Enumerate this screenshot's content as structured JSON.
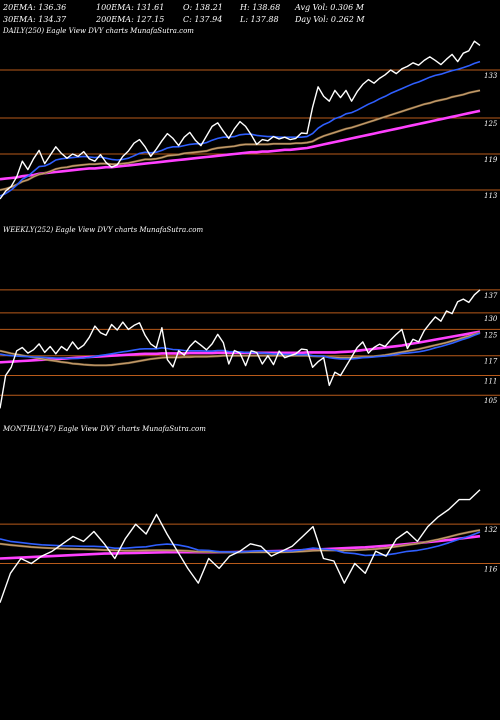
{
  "header": {
    "ema20": "20EMA: 136.36",
    "ema100": "100EMA: 131.61",
    "open": "O: 138.21",
    "high": "H: 138.68",
    "avgvol": "Avg Vol: 0.306  M",
    "ema30": "30EMA: 134.37",
    "ema200": "200EMA: 127.15",
    "close": "C: 137.94",
    "low": "L: 137.88",
    "dayvol": "Day Vol: 0.262  M"
  },
  "panels": {
    "daily": {
      "label": "DAILY(250) Eagle  View  DVY charts MunafaSutra.com"
    },
    "weekly": {
      "label": "WEEKLY(252) Eagle  View  DVY charts MunafaSutra.com"
    },
    "monthly": {
      "label": "MONTHLY(47) Eagle  View  DVY charts MunafaSutra.com"
    }
  },
  "colors": {
    "background": "#000000",
    "price": "#ffffff",
    "ema_fast": "#2f5fff",
    "ema_slow": "#c8a070",
    "ema_long": "#ff40ff",
    "gridline": "#b85a1a"
  },
  "chart_data": [
    {
      "type": "line",
      "title": "DAILY(250) Eagle  View  DVY charts MunafaSutra.com",
      "grid_levels": [
        133,
        125,
        119,
        113
      ],
      "ylim": [
        108,
        138
      ],
      "series": [
        {
          "values": [
            111.5,
            112.8,
            113.6,
            115.2,
            117.8,
            116.4,
            118.2,
            119.6,
            117.4,
            118.8,
            120.2,
            119.1,
            118.3,
            119.0,
            118.6,
            119.4,
            118.2,
            117.8,
            118.9,
            117.6,
            116.8,
            117.2,
            118.6,
            119.5,
            120.8,
            121.4,
            120.2,
            118.6,
            119.8,
            121.2,
            122.4,
            121.6,
            120.4,
            121.8,
            122.6,
            121.3,
            120.4,
            122.0,
            123.6,
            124.2,
            122.8,
            121.6,
            123.2,
            124.4,
            123.6,
            122.2,
            120.6,
            121.4,
            121.2,
            121.9,
            121.5,
            121.8,
            121.4,
            121.6,
            122.5,
            122.4,
            126.8,
            130.2,
            128.6,
            127.8,
            129.6,
            128.4,
            129.6,
            127.8,
            129.4,
            130.6,
            131.4,
            130.8,
            131.6,
            132.2,
            133.0,
            132.4,
            133.2,
            133.6,
            134.2,
            133.8,
            134.6,
            135.2,
            134.6,
            133.9,
            134.8,
            135.6,
            134.4,
            135.8,
            136.2,
            137.8,
            137.1
          ]
        },
        {
          "values": [
            112.0,
            112.4,
            113.0,
            113.8,
            114.8,
            115.3,
            116.1,
            116.9,
            117.0,
            117.4,
            118.0,
            118.2,
            118.3,
            118.4,
            118.5,
            118.6,
            118.5,
            118.4,
            118.5,
            118.3,
            118.1,
            118.0,
            118.1,
            118.3,
            118.7,
            119.1,
            119.3,
            119.2,
            119.3,
            119.6,
            120.0,
            120.2,
            120.2,
            120.4,
            120.6,
            120.7,
            120.7,
            120.9,
            121.3,
            121.6,
            121.8,
            121.8,
            121.9,
            122.2,
            122.3,
            122.3,
            122.1,
            122.0,
            121.9,
            121.9,
            121.8,
            121.8,
            121.8,
            121.8,
            121.8,
            121.9,
            122.4,
            123.3,
            123.9,
            124.3,
            124.9,
            125.2,
            125.7,
            125.9,
            126.3,
            126.8,
            127.3,
            127.7,
            128.2,
            128.6,
            129.1,
            129.5,
            129.9,
            130.3,
            130.7,
            131.0,
            131.4,
            131.8,
            132.1,
            132.3,
            132.6,
            132.9,
            133.1,
            133.4,
            133.7,
            134.1,
            134.4
          ]
        },
        {
          "values": [
            113.0,
            113.2,
            113.5,
            113.9,
            114.4,
            114.7,
            115.2,
            115.6,
            115.8,
            116.1,
            116.5,
            116.7,
            116.8,
            117.0,
            117.1,
            117.2,
            117.3,
            117.3,
            117.4,
            117.4,
            117.3,
            117.3,
            117.4,
            117.5,
            117.7,
            117.9,
            118.1,
            118.1,
            118.2,
            118.4,
            118.7,
            118.8,
            118.9,
            119.1,
            119.2,
            119.3,
            119.4,
            119.5,
            119.8,
            120.0,
            120.1,
            120.2,
            120.3,
            120.5,
            120.6,
            120.6,
            120.6,
            120.6,
            120.6,
            120.7,
            120.7,
            120.7,
            120.7,
            120.8,
            120.8,
            120.9,
            121.1,
            121.6,
            122.0,
            122.3,
            122.6,
            122.9,
            123.2,
            123.4,
            123.7,
            124.0,
            124.3,
            124.6,
            124.9,
            125.2,
            125.5,
            125.8,
            126.1,
            126.4,
            126.7,
            127.0,
            127.3,
            127.5,
            127.8,
            128.0,
            128.2,
            128.5,
            128.7,
            128.9,
            129.2,
            129.4,
            129.6
          ]
        },
        {
          "values": [
            114.8,
            114.9,
            115.0,
            115.1,
            115.3,
            115.4,
            115.5,
            115.7,
            115.8,
            115.9,
            116.0,
            116.1,
            116.2,
            116.3,
            116.4,
            116.5,
            116.6,
            116.6,
            116.7,
            116.8,
            116.8,
            116.9,
            117.0,
            117.1,
            117.2,
            117.3,
            117.4,
            117.5,
            117.6,
            117.7,
            117.8,
            117.9,
            118.0,
            118.1,
            118.2,
            118.3,
            118.4,
            118.5,
            118.6,
            118.7,
            118.8,
            118.9,
            119.0,
            119.1,
            119.2,
            119.3,
            119.3,
            119.4,
            119.4,
            119.5,
            119.6,
            119.7,
            119.7,
            119.8,
            119.9,
            120.0,
            120.2,
            120.4,
            120.6,
            120.8,
            121.0,
            121.2,
            121.4,
            121.6,
            121.8,
            122.0,
            122.2,
            122.4,
            122.6,
            122.8,
            123.0,
            123.2,
            123.4,
            123.6,
            123.8,
            124.0,
            124.2,
            124.4,
            124.6,
            124.8,
            125.0,
            125.2,
            125.4,
            125.6,
            125.8,
            126.0,
            126.2
          ]
        }
      ]
    },
    {
      "type": "line",
      "title": "WEEKLY(252) Eagle  View  DVY charts MunafaSutra.com",
      "grid_levels": [
        137,
        130,
        125,
        117,
        111,
        105
      ],
      "ylim": [
        99,
        140
      ],
      "series": [
        {
          "values": [
            101.0,
            111.0,
            113.5,
            118.5,
            119.5,
            117.8,
            118.8,
            120.6,
            118.0,
            119.8,
            117.6,
            119.8,
            118.6,
            121.2,
            119.0,
            120.2,
            122.6,
            126.0,
            124.0,
            123.2,
            126.5,
            124.8,
            127.2,
            125.0,
            126.2,
            127.0,
            123.2,
            120.6,
            119.4,
            125.5,
            115.8,
            113.6,
            118.5,
            117.2,
            119.8,
            121.5,
            120.2,
            118.8,
            120.6,
            123.5,
            121.0,
            114.5,
            118.6,
            117.8,
            114.0,
            118.5,
            118.0,
            114.5,
            117.0,
            114.3,
            118.4,
            116.4,
            117.0,
            117.6,
            119.0,
            118.8,
            113.5,
            115.2,
            116.4,
            108.0,
            112.0,
            111.0,
            113.8,
            116.6,
            119.5,
            121.2,
            117.8,
            119.5,
            120.5,
            119.8,
            121.8,
            123.5,
            125.0,
            119.2,
            122.0,
            121.2,
            124.6,
            126.8,
            128.8,
            127.5,
            130.6,
            129.8,
            133.4,
            134.2,
            133.2,
            135.5,
            137.0
          ]
        },
        {
          "values": [
            117.5,
            117.2,
            117.0,
            116.9,
            116.8,
            116.7,
            116.6,
            116.6,
            116.5,
            116.4,
            116.3,
            116.3,
            116.2,
            116.2,
            116.2,
            116.3,
            116.5,
            116.8,
            117.1,
            117.3,
            117.6,
            117.9,
            118.2,
            118.4,
            118.7,
            119.0,
            119.1,
            119.1,
            119.1,
            119.4,
            119.2,
            118.9,
            118.8,
            118.6,
            118.5,
            118.5,
            118.5,
            118.4,
            118.4,
            118.6,
            118.6,
            118.3,
            118.2,
            118.2,
            118.0,
            118.0,
            117.9,
            117.8,
            117.7,
            117.5,
            117.5,
            117.4,
            117.4,
            117.3,
            117.3,
            117.3,
            117.0,
            116.9,
            116.9,
            116.4,
            116.2,
            116.0,
            116.0,
            116.0,
            116.2,
            116.4,
            116.5,
            116.6,
            116.8,
            116.9,
            117.1,
            117.4,
            117.7,
            117.8,
            118.0,
            118.2,
            118.5,
            118.9,
            119.4,
            119.8,
            120.3,
            120.8,
            121.4,
            122.0,
            122.5,
            123.2,
            123.8
          ]
        },
        {
          "values": [
            118.5,
            118.1,
            117.7,
            117.4,
            117.1,
            116.8,
            116.5,
            116.2,
            115.9,
            115.6,
            115.4,
            115.1,
            114.9,
            114.6,
            114.5,
            114.3,
            114.2,
            114.1,
            114.1,
            114.1,
            114.2,
            114.4,
            114.6,
            114.8,
            115.1,
            115.4,
            115.7,
            116.0,
            116.2,
            116.4,
            116.5,
            116.5,
            116.5,
            116.6,
            116.6,
            116.7,
            116.7,
            116.7,
            116.8,
            116.9,
            117.0,
            117.0,
            117.0,
            117.0,
            117.0,
            117.0,
            117.0,
            117.0,
            117.0,
            117.0,
            117.0,
            117.0,
            117.0,
            117.0,
            117.0,
            117.0,
            116.9,
            116.8,
            116.8,
            116.6,
            116.5,
            116.4,
            116.4,
            116.4,
            116.5,
            116.6,
            116.7,
            116.8,
            117.0,
            117.2,
            117.5,
            117.8,
            118.1,
            118.4,
            118.7,
            119.0,
            119.4,
            119.8,
            120.2,
            120.6,
            121.0,
            121.5,
            122.0,
            122.5,
            123.0,
            123.5,
            124.0
          ]
        },
        {
          "values": [
            115.0,
            115.1,
            115.2,
            115.3,
            115.4,
            115.5,
            115.6,
            115.7,
            115.8,
            115.9,
            116.0,
            116.1,
            116.2,
            116.3,
            116.4,
            116.5,
            116.6,
            116.7,
            116.8,
            116.9,
            117.0,
            117.1,
            117.2,
            117.3,
            117.4,
            117.5,
            117.6,
            117.6,
            117.6,
            117.7,
            117.7,
            117.7,
            117.7,
            117.7,
            117.8,
            117.8,
            117.8,
            117.8,
            117.8,
            117.9,
            117.9,
            117.9,
            117.9,
            117.9,
            117.9,
            117.9,
            117.9,
            117.9,
            117.9,
            117.9,
            117.9,
            117.9,
            117.9,
            117.9,
            117.9,
            118.0,
            118.0,
            118.0,
            118.0,
            118.0,
            118.0,
            118.1,
            118.2,
            118.3,
            118.5,
            118.7,
            118.9,
            119.1,
            119.3,
            119.5,
            119.7,
            119.9,
            120.1,
            120.4,
            120.7,
            121.0,
            121.3,
            121.6,
            121.9,
            122.2,
            122.5,
            122.8,
            123.1,
            123.4,
            123.7,
            124.0,
            124.3
          ]
        }
      ]
    },
    {
      "type": "line",
      "title": "MONTHLY(47) Eagle  View  DVY charts MunafaSutra.com",
      "grid_levels": [
        132,
        116
      ],
      "ylim": [
        95,
        150
      ],
      "series": [
        {
          "values": [
            100.0,
            112.0,
            118.0,
            116.0,
            119.0,
            121.0,
            124.0,
            127.0,
            125.0,
            129.0,
            124.0,
            118.0,
            126.0,
            132.0,
            128.0,
            136.0,
            128.0,
            121.0,
            114.0,
            108.0,
            118.0,
            114.0,
            119.0,
            121.0,
            124.0,
            123.0,
            119.0,
            121.0,
            123.0,
            127.0,
            131.0,
            118.0,
            117.0,
            108.0,
            116.0,
            112.0,
            121.0,
            119.0,
            126.0,
            129.0,
            125.0,
            131.0,
            135.0,
            138.0,
            142.0,
            142.0,
            146.0
          ]
        },
        {
          "values": [
            126.0,
            125.0,
            124.5,
            124.0,
            123.6,
            123.4,
            123.2,
            123.1,
            123.0,
            123.0,
            122.8,
            122.2,
            122.2,
            122.6,
            122.8,
            123.5,
            123.9,
            123.6,
            122.8,
            121.5,
            121.3,
            120.8,
            120.7,
            120.7,
            121.0,
            121.2,
            121.0,
            121.0,
            121.1,
            121.6,
            122.3,
            121.9,
            121.5,
            120.4,
            120.0,
            119.3,
            119.4,
            119.5,
            120.1,
            120.9,
            121.3,
            122.1,
            123.1,
            124.4,
            125.9,
            127.2,
            128.8
          ]
        },
        {
          "values": [
            124.0,
            123.5,
            123.1,
            122.7,
            122.4,
            122.2,
            122.0,
            121.9,
            121.8,
            121.7,
            121.5,
            121.3,
            121.2,
            121.2,
            121.3,
            121.4,
            121.4,
            121.3,
            121.1,
            120.8,
            120.7,
            120.6,
            120.5,
            120.5,
            120.6,
            120.6,
            120.6,
            120.6,
            120.7,
            120.9,
            121.2,
            121.3,
            121.3,
            121.3,
            121.4,
            121.6,
            121.9,
            122.3,
            122.9,
            123.5,
            124.1,
            124.9,
            125.8,
            126.8,
            127.9,
            128.8,
            129.6
          ]
        },
        {
          "values": [
            118.0,
            118.2,
            118.4,
            118.6,
            118.8,
            119.0,
            119.2,
            119.4,
            119.6,
            119.8,
            120.0,
            120.1,
            120.2,
            120.3,
            120.4,
            120.5,
            120.6,
            120.6,
            120.6,
            120.6,
            120.6,
            120.6,
            120.6,
            120.7,
            120.8,
            120.9,
            121.0,
            121.1,
            121.2,
            121.4,
            121.6,
            121.8,
            122.0,
            122.2,
            122.4,
            122.6,
            122.9,
            123.2,
            123.5,
            123.9,
            124.3,
            124.7,
            125.1,
            125.6,
            126.1,
            126.6,
            127.1
          ]
        }
      ]
    }
  ]
}
